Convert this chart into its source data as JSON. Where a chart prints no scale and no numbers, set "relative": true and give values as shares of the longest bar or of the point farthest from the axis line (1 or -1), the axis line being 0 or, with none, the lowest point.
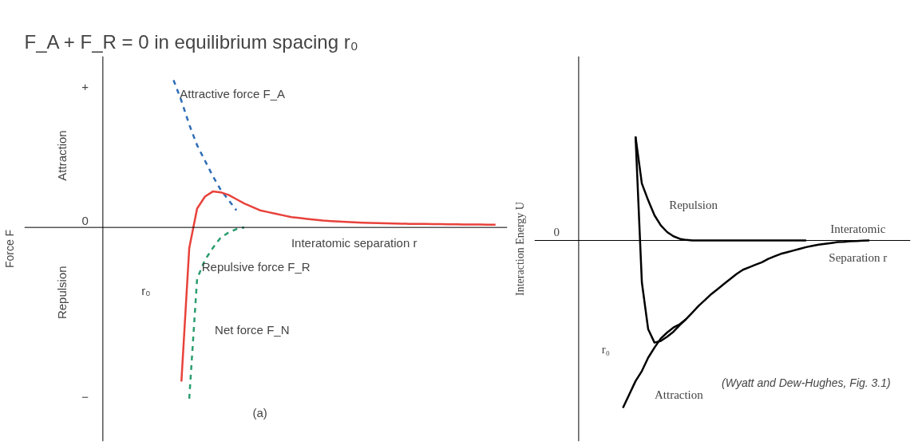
{
  "chart_data": [
    {
      "type": "line",
      "relative": true,
      "title": "F_A + F_R = 0 in equilibrium spacing r₀",
      "ylabel": "Force F",
      "categories": [
        null,
        null,
        null,
        null,
        null,
        null,
        null,
        null,
        null,
        null,
        null,
        null,
        null,
        null,
        null,
        null,
        null,
        null,
        null,
        null,
        null,
        null,
        null,
        null,
        null,
        null,
        null,
        null,
        null,
        null,
        null,
        null,
        null,
        null,
        null,
        null,
        null,
        null,
        null,
        null,
        null,
        null,
        null,
        null,
        null,
        null,
        null,
        null,
        null,
        null,
        null
      ],
      "series": [
        {
          "color": "#2f6db5",
          "line_style": "dashed",
          "values": [
            null,
            null,
            null,
            null,
            null,
            null,
            null,
            null,
            null,
            0.86,
            0.74,
            0.6,
            0.48,
            0.39,
            0.3,
            0.22,
            0.16,
            0.1,
            null,
            null,
            null,
            null,
            null,
            null,
            null,
            null,
            null,
            null,
            null,
            null,
            null,
            null,
            null,
            null,
            null,
            null,
            null,
            null,
            null,
            null,
            null,
            null,
            null,
            null,
            null,
            null,
            null,
            null,
            null,
            null,
            null
          ]
        },
        {
          "color": "#e8423b",
          "line_style": "solid",
          "values": [
            null,
            null,
            null,
            null,
            null,
            null,
            null,
            null,
            null,
            null,
            -0.9,
            -0.12,
            0.11,
            0.18,
            0.21,
            0.205,
            0.19,
            0.165,
            0.14,
            0.12,
            0.1,
            0.09,
            0.08,
            0.07,
            0.06,
            0.055,
            0.05,
            0.045,
            0.04,
            0.037,
            0.034,
            0.032,
            0.03,
            0.028,
            0.026,
            0.025,
            0.024,
            0.023,
            0.022,
            0.021,
            0.02,
            0.02,
            0.019,
            0.019,
            0.018,
            0.018,
            0.017,
            0.017,
            0.017,
            0.016,
            0.016
          ]
        },
        {
          "color": "#2a9d6e",
          "line_style": "dashed",
          "values": [
            null,
            null,
            null,
            null,
            null,
            null,
            null,
            null,
            null,
            null,
            null,
            -1.0,
            -0.3,
            -0.19,
            -0.12,
            -0.06,
            -0.03,
            -0.01,
            0.0,
            null,
            null,
            null,
            null,
            null,
            null,
            null,
            null,
            null,
            null,
            null,
            null,
            null,
            null,
            null,
            null,
            null,
            null,
            null,
            null,
            null,
            null,
            null,
            null,
            null,
            null,
            null,
            null,
            null,
            null,
            null,
            null
          ]
        }
      ],
      "annotations": [
        "+",
        "0",
        "−",
        "Attraction",
        "Repulsion",
        "Attractive force F_A",
        "Interatomic separation r",
        "Repulsive force F_R",
        "r₀",
        "Net force F_N",
        "(a)"
      ]
    },
    {
      "type": "line",
      "relative": true,
      "ylabel": "Interaction Energy U",
      "categories": [
        null,
        null,
        null,
        null,
        null,
        null,
        null,
        null,
        null,
        null,
        null,
        null,
        null,
        null,
        null,
        null,
        null,
        null,
        null,
        null,
        null,
        null,
        null,
        null,
        null,
        null,
        null,
        null,
        null,
        null,
        null,
        null,
        null,
        null,
        null,
        null,
        null,
        null,
        null,
        null,
        null,
        null,
        null,
        null,
        null,
        null,
        null,
        null,
        null,
        null,
        null
      ],
      "series": [
        {
          "color": "#000000",
          "line_style": "solid",
          "values": [
            null,
            null,
            null,
            null,
            null,
            null,
            null,
            null,
            null,
            0.62,
            -0.25,
            -0.53,
            -0.61,
            -0.6,
            -0.575,
            -0.545,
            -0.505,
            -0.47,
            -0.43,
            -0.39,
            -0.355,
            -0.32,
            -0.29,
            -0.26,
            -0.23,
            -0.2,
            -0.175,
            -0.16,
            -0.145,
            -0.13,
            -0.11,
            -0.095,
            -0.08,
            -0.07,
            -0.06,
            -0.05,
            -0.04,
            -0.032,
            -0.025,
            -0.02,
            -0.015,
            -0.01,
            -0.008,
            -0.005,
            -0.003,
            -0.001,
            0,
            null,
            null,
            null,
            null
          ]
        },
        {
          "color": "#000000",
          "line_style": "solid",
          "values": [
            null,
            null,
            null,
            null,
            null,
            null,
            null,
            null,
            null,
            0.62,
            0.34,
            0.24,
            0.15,
            0.09,
            0.05,
            0.025,
            0.01,
            0.003,
            0,
            0,
            0,
            0,
            0,
            0,
            0,
            0,
            0,
            0,
            0,
            0,
            0,
            0,
            0,
            0,
            0,
            0,
            0,
            null,
            null,
            null,
            null,
            null,
            null,
            null,
            null,
            null,
            null,
            null,
            null,
            null,
            null
          ]
        },
        {
          "color": "#000000",
          "line_style": "solid",
          "values": [
            null,
            null,
            null,
            null,
            null,
            null,
            null,
            -1.0,
            -0.92,
            -0.84,
            -0.78,
            -0.7,
            -0.64,
            -0.585,
            -0.55,
            -0.52,
            -0.5,
            -0.47,
            null,
            null,
            null,
            null,
            null,
            null,
            null,
            null,
            null,
            null,
            null,
            null,
            null,
            null,
            null,
            null,
            null,
            null,
            null,
            null,
            null,
            null,
            null,
            null,
            null,
            null,
            null,
            null,
            null,
            null,
            null,
            null,
            null
          ]
        }
      ],
      "annotations": [
        "0",
        "Repulsion",
        "Interatomic",
        "Separation r",
        "r₀",
        "Attraction",
        "(Wyatt and Dew-Hughes, Fig. 3.1)"
      ]
    }
  ]
}
